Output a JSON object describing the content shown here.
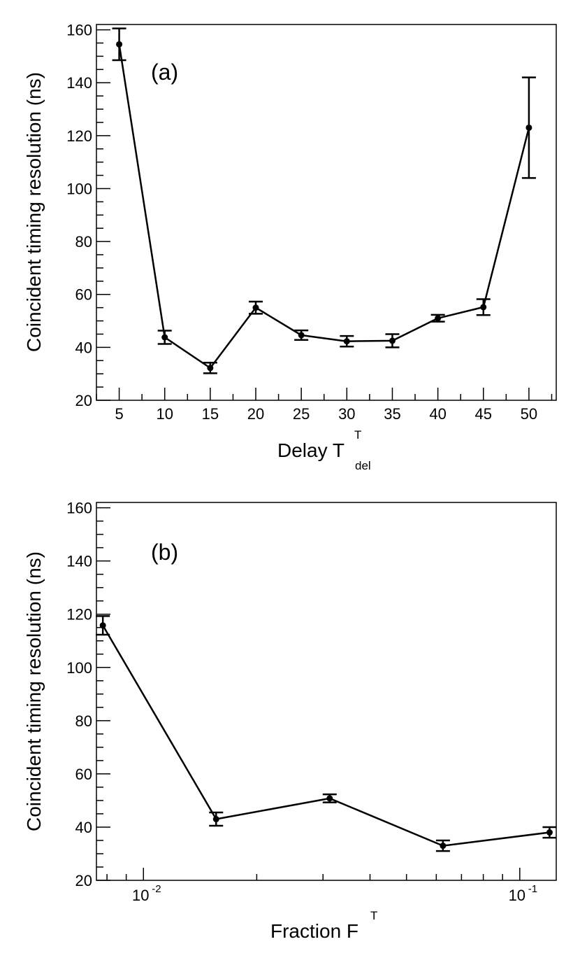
{
  "chart_data": [
    {
      "type": "line",
      "panel_label": "(a)",
      "xlabel": "Delay",
      "xlabel_main": "Delay T",
      "xlabel_sub": "del",
      "xlabel_sup": "T",
      "ylabel": "Coincident timing resolution (ns)",
      "xscale": "linear",
      "xlim": [
        2.5,
        53
      ],
      "ylim": [
        20,
        162
      ],
      "x_ticks": [
        5,
        10,
        15,
        20,
        25,
        30,
        35,
        40,
        45,
        50
      ],
      "y_ticks": [
        20,
        40,
        60,
        80,
        100,
        120,
        140,
        160
      ],
      "grid": false,
      "legend": "none",
      "series": [
        {
          "name": "coincident timing resolution",
          "x": [
            5,
            10,
            15,
            20,
            25,
            30,
            35,
            40,
            45,
            50
          ],
          "y": [
            154.5,
            43.8,
            32.2,
            55.0,
            44.6,
            42.3,
            42.5,
            51.0,
            55.2,
            123.0
          ],
          "yerr": [
            6.0,
            2.5,
            2.0,
            2.3,
            1.8,
            2.0,
            2.5,
            1.3,
            3.0,
            19.0
          ]
        }
      ]
    },
    {
      "type": "line",
      "panel_label": "(b)",
      "xlabel": "Fraction",
      "xlabel_main": "Fraction F",
      "xlabel_sup": "T",
      "ylabel": "Coincident timing resolution (ns)",
      "xscale": "log",
      "xlim": [
        0.0075,
        0.125
      ],
      "ylim": [
        20,
        162
      ],
      "x_ticks": [
        0.01,
        0.1
      ],
      "x_tick_labels": [
        {
          "base": "10",
          "exp": "-2"
        },
        {
          "base": "10",
          "exp": "-1"
        }
      ],
      "y_ticks": [
        20,
        40,
        60,
        80,
        100,
        120,
        140,
        160
      ],
      "grid": false,
      "legend": "none",
      "series": [
        {
          "name": "coincident timing resolution",
          "x": [
            0.0078,
            0.0156,
            0.03125,
            0.0625,
            0.12
          ],
          "y": [
            115.8,
            43.0,
            50.8,
            33.0,
            38.0
          ],
          "yerr": [
            3.5,
            2.5,
            1.5,
            2.0,
            2.0
          ]
        }
      ]
    }
  ]
}
